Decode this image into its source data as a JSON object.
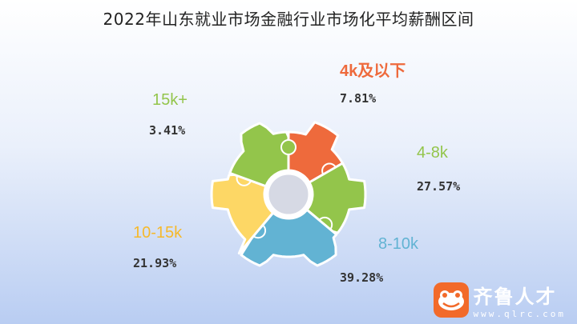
{
  "title": "2022年山东就业市场金融行业市场化平均薪酬区间",
  "logo": {
    "name": "齐鲁人才",
    "url": "www.qlrc.com",
    "icon": "frog-face-icon"
  },
  "colors": {
    "orange": "#ee6a3c",
    "green": "#93c54b",
    "blue": "#62b3d3",
    "yellow": "#fdd765",
    "center": "#d6d9e4"
  },
  "chart_data": {
    "type": "pie",
    "categories": [
      "4k及以下",
      "4-8k",
      "8-10k",
      "10-15k",
      "15k+"
    ],
    "values": [
      7.81,
      27.57,
      39.28,
      21.93,
      3.41
    ],
    "value_labels": [
      "7.81%",
      "27.57%",
      "39.28%",
      "21.93%",
      "3.41%"
    ],
    "unit": "%",
    "label_colors": [
      "#ee6a3c",
      "#93c54b",
      "#62b3d3",
      "#f6b92b",
      "#93c54b"
    ]
  }
}
